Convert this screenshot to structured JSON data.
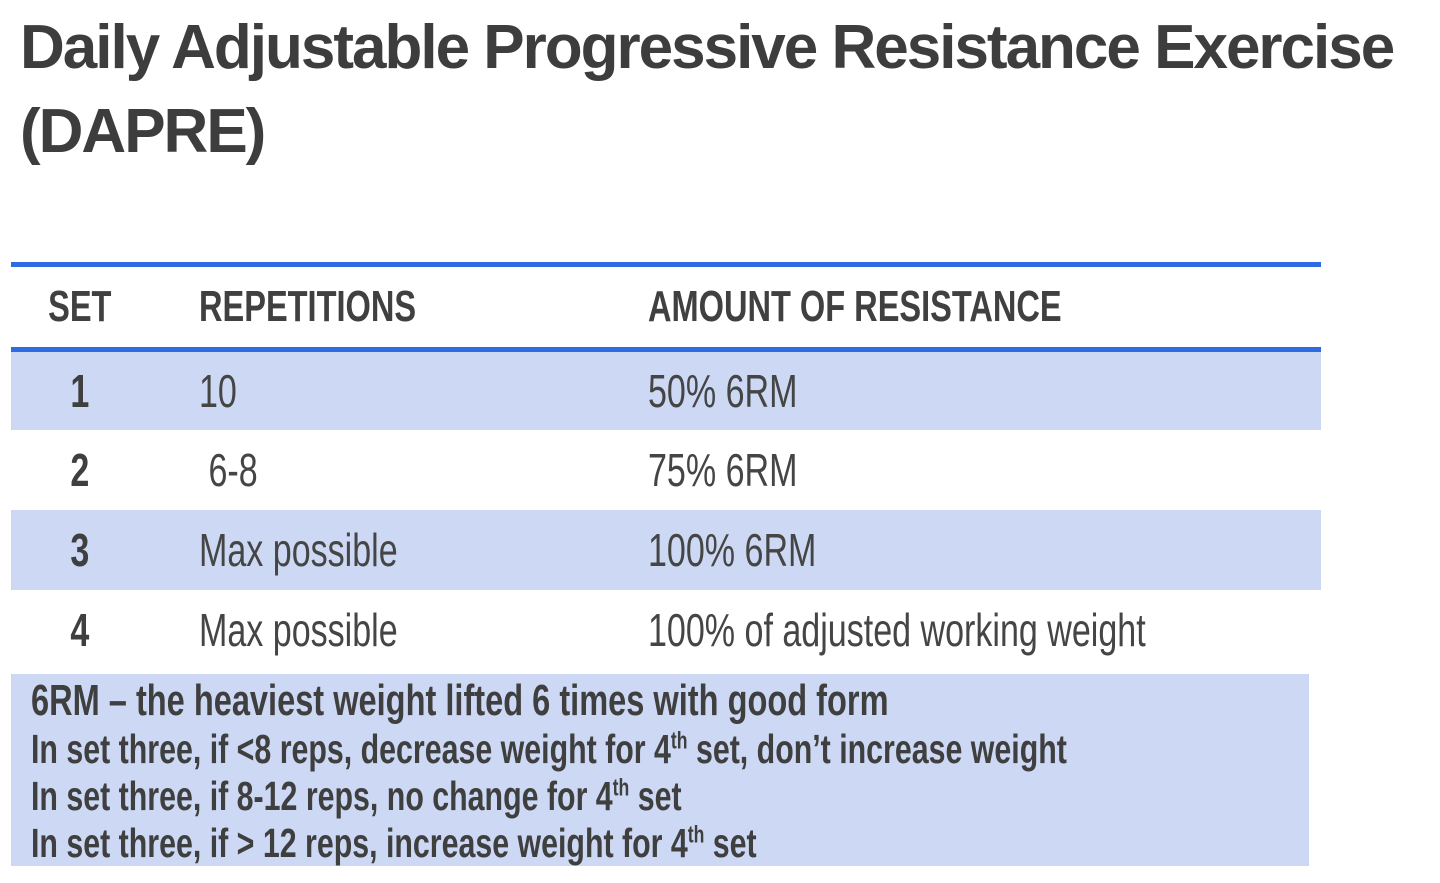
{
  "title": "Daily Adjustable Progressive Resistance Exercise (DAPRE)",
  "table": {
    "columns": [
      "SET",
      "REPETITIONS",
      "AMOUNT OF RESISTANCE"
    ],
    "rows": [
      {
        "set": "1",
        "repetitions": "10",
        "resistance": "50% 6RM"
      },
      {
        "set": "2",
        "repetitions": " 6-8",
        "resistance": "75% 6RM"
      },
      {
        "set": "3",
        "repetitions": "Max possible",
        "resistance": "100% 6RM"
      },
      {
        "set": "4",
        "repetitions": "Max possible",
        "resistance": "100% of adjusted working weight"
      }
    ]
  },
  "notes": {
    "definition": "6RM – the heaviest weight lifted 6 times with good form",
    "lines": [
      {
        "before": "In set three, if <8 reps, decrease weight for 4",
        "sup": "th",
        "after": " set, don’t increase weight"
      },
      {
        "before": "In set three, if 8-12 reps, no change for 4",
        "sup": "th",
        "after": " set"
      },
      {
        "before": "In set three, if > 12 reps, increase weight for 4",
        "sup": "th",
        "after": " set"
      }
    ]
  },
  "colors": {
    "rule_blue": "#2e6ae2",
    "band_blue": "#cdd9f4",
    "title_gray": "#3d3d3d",
    "text_gray": "#454545"
  }
}
